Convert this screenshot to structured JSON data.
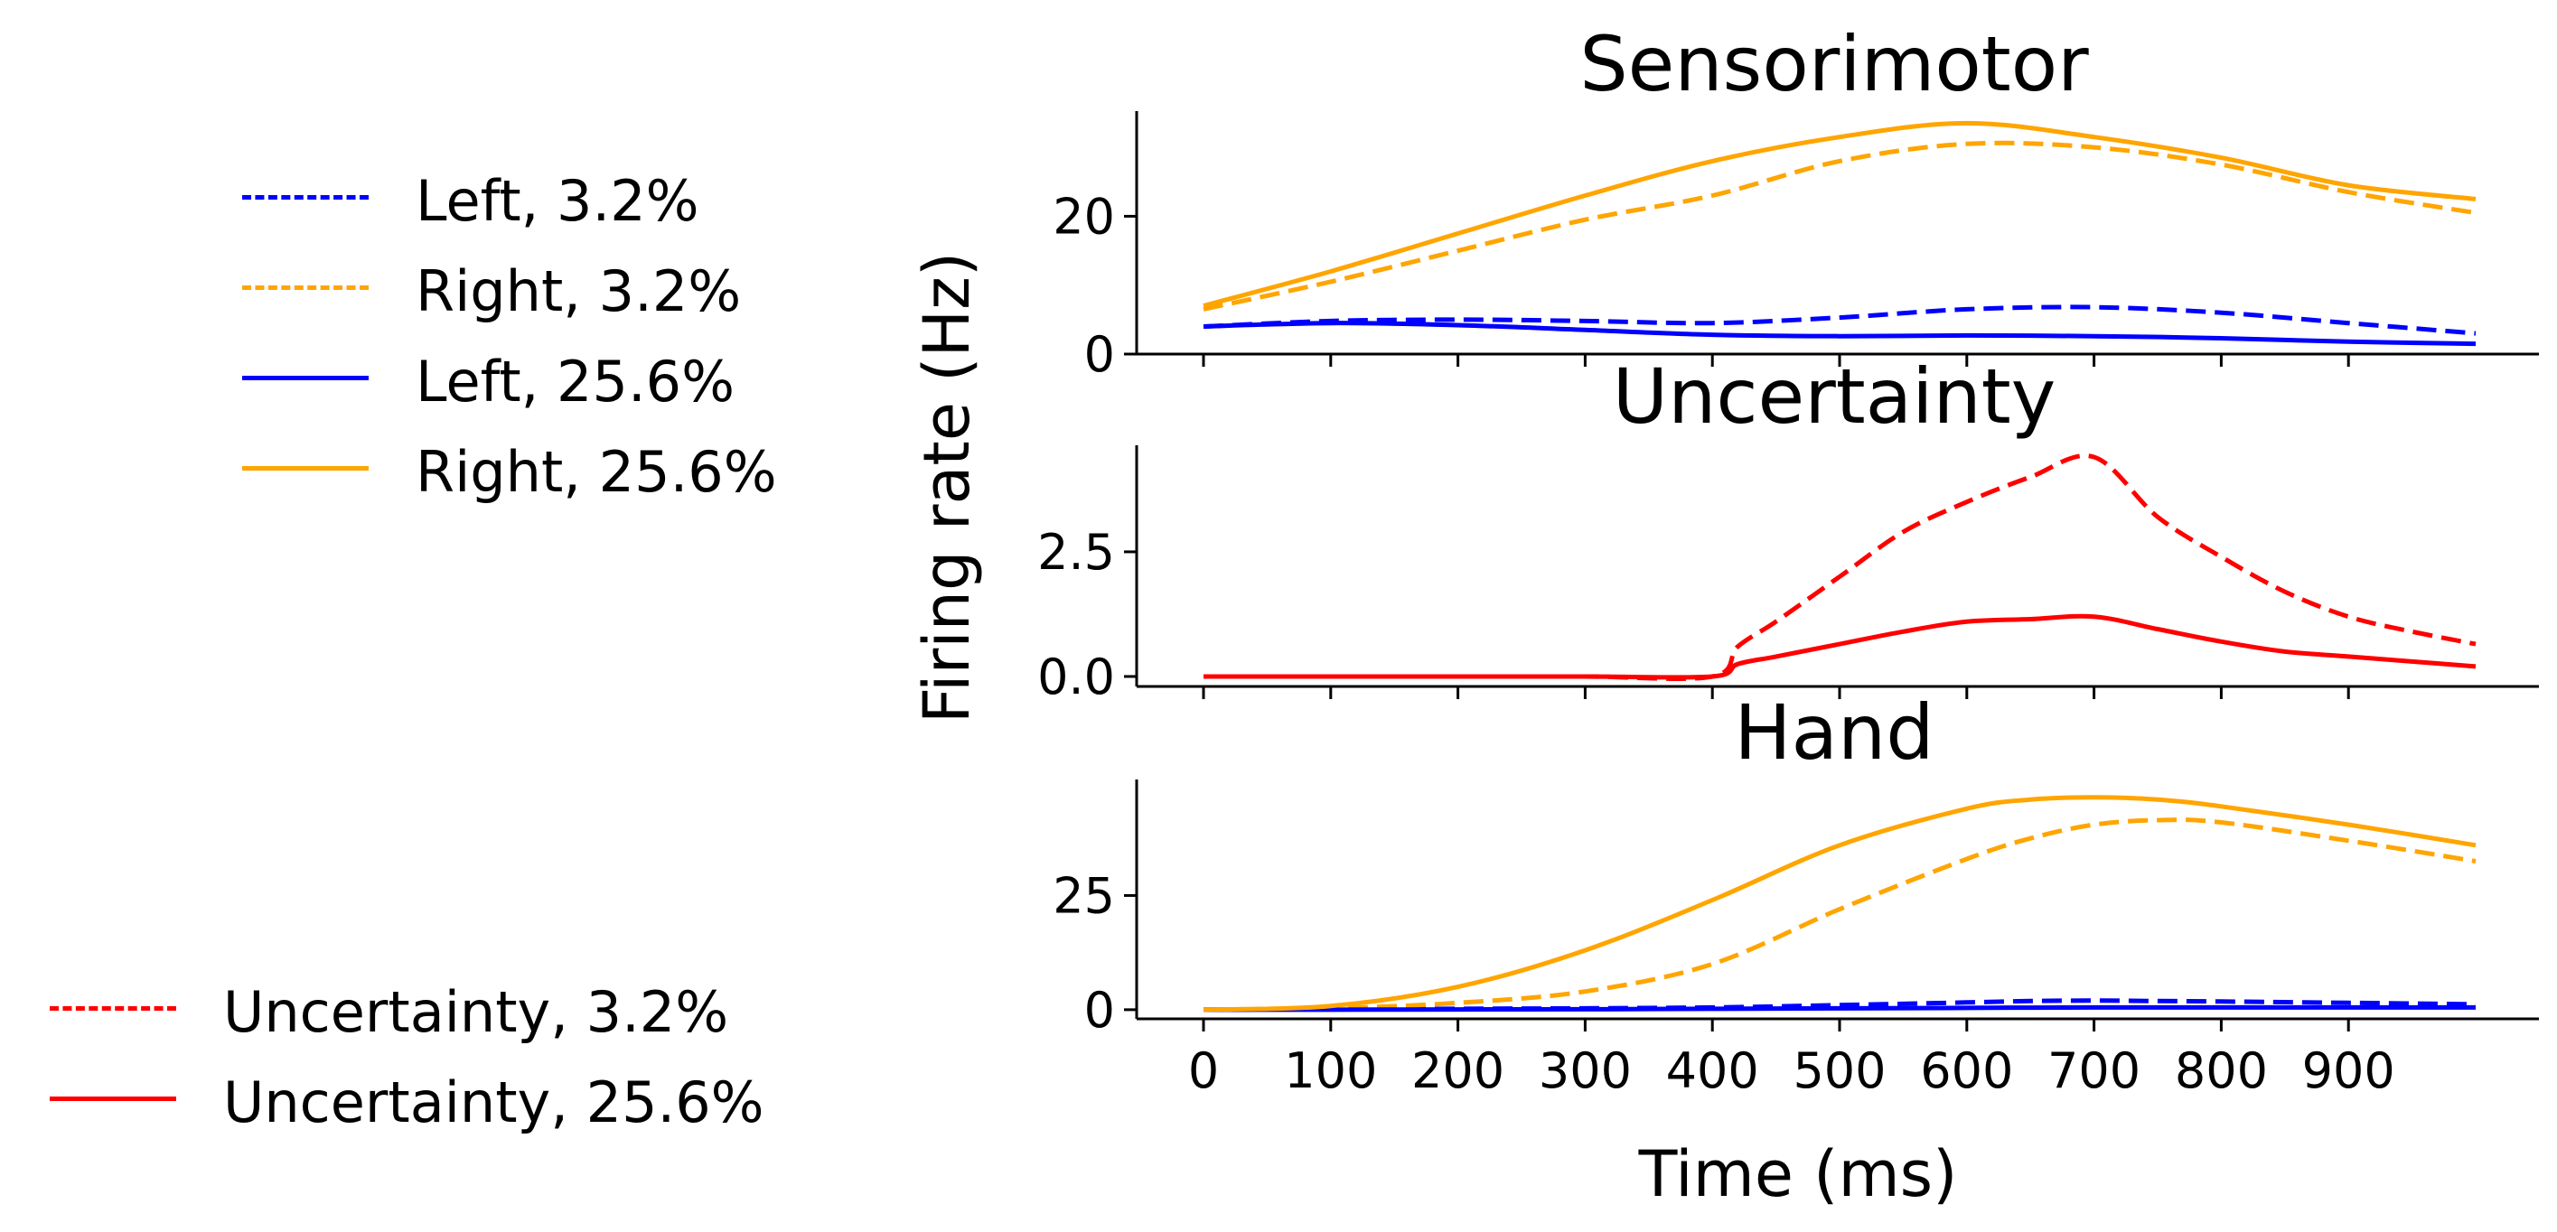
{
  "colors": {
    "left": "#0000ff",
    "right": "#ffa500",
    "uncertainty": "#ff0000"
  },
  "legends": {
    "neurons": [
      {
        "label": "Left, 3.2%",
        "color": "#0000ff",
        "style": "dashed"
      },
      {
        "label": "Right, 3.2%",
        "color": "#ffa500",
        "style": "dashed"
      },
      {
        "label": "Left, 25.6%",
        "color": "#0000ff",
        "style": "solid"
      },
      {
        "label": "Right, 25.6%",
        "color": "#ffa500",
        "style": "solid"
      }
    ],
    "uncertainty": [
      {
        "label": "Uncertainty, 3.2%",
        "color": "#ff0000",
        "style": "dashed"
      },
      {
        "label": "Uncertainty, 25.6%",
        "color": "#ff0000",
        "style": "solid"
      }
    ]
  },
  "chart_data": {
    "type": "line",
    "ylabel": "Firing rate (Hz)",
    "xlabel": "Time (ms)",
    "xlim": [
      -20,
      1020
    ],
    "xticks": [
      0,
      100,
      200,
      300,
      400,
      500,
      600,
      700,
      800,
      900
    ],
    "grid": false,
    "panels": [
      {
        "title": "Sensorimotor",
        "ylim": [
          0,
          35
        ],
        "yticks": [
          {
            "value": 0,
            "label": "0"
          },
          {
            "value": 20,
            "label": "20"
          }
        ],
        "x": [
          0,
          100,
          200,
          300,
          400,
          500,
          600,
          700,
          800,
          900,
          1000
        ],
        "series": [
          {
            "legend": "Left, 3.2%",
            "color": "#0000ff",
            "style": "dashed",
            "values": [
              4,
              4.8,
              5,
              4.8,
              4.5,
              5.3,
              6.5,
              6.8,
              6,
              4.5,
              3
            ]
          },
          {
            "legend": "Right, 3.2%",
            "color": "#ffa500",
            "style": "dashed",
            "values": [
              6.5,
              10.5,
              15,
              19.5,
              23,
              28,
              30.5,
              30,
              27.5,
              23.5,
              20.5
            ]
          },
          {
            "legend": "Left, 25.6%",
            "color": "#0000ff",
            "style": "solid",
            "values": [
              4,
              4.5,
              4.2,
              3.5,
              2.8,
              2.6,
              2.7,
              2.6,
              2.3,
              1.8,
              1.5
            ]
          },
          {
            "legend": "Right, 25.6%",
            "color": "#ffa500",
            "style": "solid",
            "values": [
              7,
              12,
              17.5,
              23,
              28,
              31.5,
              33.5,
              31.5,
              28.5,
              24.5,
              22.5
            ]
          }
        ]
      },
      {
        "title": "Uncertainty",
        "ylim": [
          -0.2,
          4.6
        ],
        "yticks": [
          {
            "value": 0,
            "label": "0.0"
          },
          {
            "value": 2.5,
            "label": "2.5"
          }
        ],
        "x": [
          0,
          100,
          200,
          300,
          400,
          420,
          450,
          500,
          550,
          600,
          650,
          700,
          750,
          800,
          850,
          900,
          950,
          1000
        ],
        "series": [
          {
            "legend": "Uncertainty, 3.2%",
            "color": "#ff0000",
            "style": "dashed",
            "values": [
              0,
              0,
              0,
              0,
              0,
              0.6,
              1.1,
              2,
              2.9,
              3.5,
              4.0,
              4.4,
              3.2,
              2.4,
              1.7,
              1.2,
              0.9,
              0.65
            ]
          },
          {
            "legend": "Uncertainty, 25.6%",
            "color": "#ff0000",
            "style": "solid",
            "values": [
              0,
              0,
              0,
              0,
              0,
              0.25,
              0.4,
              0.65,
              0.9,
              1.1,
              1.15,
              1.2,
              0.95,
              0.7,
              0.5,
              0.4,
              0.3,
              0.2
            ]
          }
        ]
      },
      {
        "title": "Hand",
        "ylim": [
          -2,
          50
        ],
        "yticks": [
          {
            "value": 0,
            "label": "0"
          },
          {
            "value": 25,
            "label": "25"
          }
        ],
        "x": [
          0,
          100,
          200,
          300,
          400,
          500,
          600,
          650,
          700,
          750,
          800,
          900,
          1000
        ],
        "series": [
          {
            "legend": "Left, 3.2%",
            "color": "#0000ff",
            "style": "dashed",
            "values": [
              0,
              0.1,
              0.2,
              0.3,
              0.5,
              1.0,
              1.6,
              1.9,
              2.0,
              1.9,
              1.8,
              1.5,
              1.2
            ]
          },
          {
            "legend": "Right, 3.2%",
            "color": "#ffa500",
            "style": "dashed",
            "values": [
              0,
              0.3,
              1.5,
              4,
              10,
              22,
              33,
              37.5,
              40.5,
              41.5,
              41,
              37,
              32.5
            ]
          },
          {
            "legend": "Left, 25.6%",
            "color": "#0000ff",
            "style": "solid",
            "values": [
              0,
              0,
              0.05,
              0.1,
              0.2,
              0.3,
              0.4,
              0.45,
              0.5,
              0.5,
              0.5,
              0.5,
              0.5
            ]
          },
          {
            "legend": "Right, 25.6%",
            "color": "#ffa500",
            "style": "solid",
            "values": [
              0,
              0.8,
              5,
              13,
              24,
              36,
              44,
              46,
              46.5,
              46,
              44.5,
              40.5,
              36
            ]
          }
        ]
      }
    ]
  }
}
